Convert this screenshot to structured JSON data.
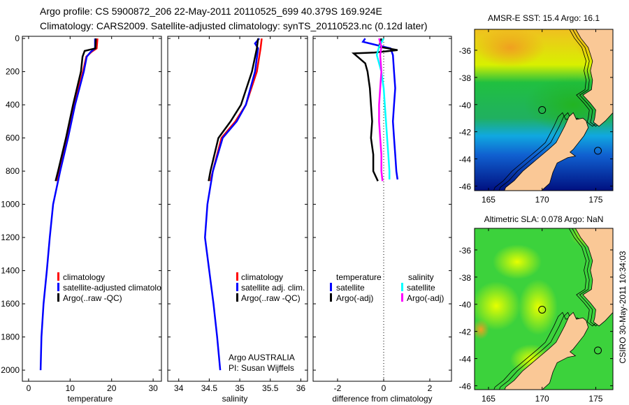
{
  "header": {
    "line1": "Argo profile: CS 5900872_206 22-May-2011 20110525_699 40.379S 169.924E",
    "line2": "Climatology: CARS2009. Satellite-adjusted climatology: synTS_20110523.nc (0.12d later)"
  },
  "footer_stamp": "CSIRO 30-May-2011 10:34:03",
  "chart_data": [
    {
      "type": "line",
      "id": "temperature",
      "xlabel": "temperature",
      "ylabel": "",
      "xlim": [
        -1.5,
        32
      ],
      "ylim": [
        -13,
        2067
      ],
      "y_reversed": true,
      "xticks": [
        0,
        10,
        20,
        30
      ],
      "yticks": [
        0,
        200,
        400,
        600,
        800,
        1000,
        1200,
        1400,
        1600,
        1800,
        2000
      ],
      "legend": [
        "climatology",
        "satellite-adjusted climatology",
        "Argo(..raw -QC)"
      ],
      "legend_colors": [
        "#ff0000",
        "#0000ff",
        "#000000"
      ],
      "series": [
        {
          "name": "climatology",
          "color": "#ff0000",
          "depth": [
            0,
            60,
            80,
            110,
            200,
            400,
            600,
            800,
            860
          ],
          "values": [
            16.6,
            16.4,
            15.2,
            13.9,
            13.1,
            11.0,
            9.3,
            7.4,
            6.9
          ]
        },
        {
          "name": "satellite-adjusted climatology",
          "color": "#0000ff",
          "depth": [
            0,
            60,
            80,
            110,
            200,
            400,
            600,
            800,
            1000,
            1200,
            1400,
            1600,
            1800,
            2000
          ],
          "values": [
            16.0,
            16.0,
            15.0,
            14.0,
            13.3,
            11.2,
            9.5,
            7.6,
            5.9,
            5.1,
            4.4,
            3.6,
            3.1,
            2.9
          ]
        },
        {
          "name": "Argo(..raw -QC)",
          "color": "#000000",
          "depth": [
            0,
            60,
            75,
            110,
            200,
            400,
            600,
            800,
            860
          ],
          "values": [
            16.2,
            16.1,
            13.5,
            13.0,
            12.6,
            10.7,
            9.0,
            7.1,
            6.5
          ]
        }
      ]
    },
    {
      "type": "line",
      "id": "salinity",
      "xlabel": "salinity",
      "ylabel": "",
      "xlim": [
        33.82,
        36.11
      ],
      "ylim": [
        -13,
        2067
      ],
      "y_reversed": true,
      "xticks": [
        34,
        34.5,
        35,
        35.5,
        36
      ],
      "legend": [
        "climatology",
        "satellite adj. clim.",
        "Argo(..raw -QC)"
      ],
      "legend_colors": [
        "#ff0000",
        "#0000ff",
        "#000000"
      ],
      "annotation": [
        "Argo AUSTRALIA",
        "PI: Susan Wijffels"
      ],
      "series": [
        {
          "name": "climatology",
          "color": "#ff0000",
          "depth": [
            0,
            60,
            200,
            400,
            500,
            600,
            800,
            860
          ],
          "values": [
            35.36,
            35.34,
            35.28,
            35.1,
            34.93,
            34.7,
            34.56,
            34.52
          ]
        },
        {
          "name": "satellite adj. clim.",
          "color": "#0000ff",
          "depth": [
            0,
            30,
            60,
            200,
            400,
            500,
            600,
            800,
            1000,
            1200,
            1400,
            1600,
            1800,
            2000
          ],
          "values": [
            35.32,
            35.25,
            35.3,
            35.25,
            35.1,
            34.95,
            34.72,
            34.56,
            34.47,
            34.43,
            34.5,
            34.57,
            34.63,
            34.68
          ]
        },
        {
          "name": "Argo(..raw -QC)",
          "color": "#000000",
          "depth": [
            0,
            60,
            200,
            400,
            500,
            600,
            800,
            860
          ],
          "values": [
            35.3,
            35.28,
            35.2,
            35.02,
            34.85,
            34.65,
            34.52,
            34.49
          ]
        }
      ]
    },
    {
      "type": "line",
      "id": "difference",
      "xlabel": "difference from climatology",
      "ylabel": "",
      "xlim": [
        -3.06,
        2.94
      ],
      "ylim": [
        -13,
        2067
      ],
      "y_reversed": true,
      "xticks": [
        -2,
        0,
        2
      ],
      "legend_headers": [
        "temperature",
        "salinity"
      ],
      "legend": [
        "satellite",
        "Argo(-adj)",
        "satellite",
        "Argo(-adj)"
      ],
      "legend_colors": [
        "#0000ff",
        "#000000",
        "#00ffff",
        "#ff00ff"
      ],
      "series": [
        {
          "name": "temperature satellite",
          "color": "#0000ff",
          "depth": [
            0,
            20,
            40,
            60,
            100,
            200,
            300,
            400,
            500,
            600,
            700,
            800,
            850
          ],
          "values": [
            -0.8,
            -0.9,
            -0.3,
            0.3,
            0.4,
            0.45,
            0.5,
            0.45,
            0.4,
            0.45,
            0.5,
            0.55,
            0.6
          ]
        },
        {
          "name": "temperature Argo(-adj)",
          "color": "#000000",
          "depth": [
            0,
            50,
            70,
            85,
            90,
            150,
            200,
            300,
            400,
            500,
            600,
            700,
            800,
            860
          ],
          "values": [
            -0.1,
            -0.2,
            0.6,
            -0.4,
            -1.3,
            -0.8,
            -0.7,
            -0.6,
            -0.55,
            -0.5,
            -0.55,
            -0.45,
            -0.45,
            -0.25
          ]
        },
        {
          "name": "salinity satellite",
          "color": "#00ffff",
          "depth": [
            0,
            50,
            100,
            200,
            300,
            400,
            500,
            600,
            700,
            800,
            850
          ],
          "values": [
            0.0,
            -0.2,
            -0.3,
            -0.1,
            0.0,
            0.05,
            0.1,
            0.15,
            0.2,
            0.25,
            0.25
          ]
        },
        {
          "name": "salinity Argo(-adj)",
          "color": "#ff00ff",
          "depth": [
            0,
            50,
            100,
            200,
            300,
            400,
            500,
            600,
            700,
            800,
            860
          ],
          "values": [
            -0.2,
            -0.1,
            -0.15,
            -0.1,
            -0.15,
            -0.2,
            -0.2,
            -0.15,
            -0.1,
            -0.1,
            -0.05
          ]
        }
      ]
    },
    {
      "type": "heatmap",
      "id": "sst-map",
      "title": "AMSR-E SST: 15.4 Argo: 16.1",
      "xlim": [
        163.7,
        176.6
      ],
      "ylim": [
        -46.4,
        -34.5
      ],
      "xticks": [
        165,
        170,
        175
      ],
      "yticks": [
        -36,
        -38,
        -40,
        -42,
        -44,
        -46
      ],
      "markers": [
        [
          170.0,
          -40.4
        ],
        [
          175.2,
          -43.4
        ]
      ]
    },
    {
      "type": "heatmap",
      "id": "sla-map",
      "title": "Altimetric SLA: 0.078 Argo: NaN",
      "xlim": [
        163.7,
        176.6
      ],
      "ylim": [
        -46.4,
        -34.5
      ],
      "xticks": [
        165,
        170,
        175
      ],
      "yticks": [
        -36,
        -38,
        -40,
        -42,
        -44,
        -46
      ],
      "markers": [
        [
          170.0,
          -40.4
        ],
        [
          175.2,
          -43.4
        ]
      ]
    }
  ]
}
